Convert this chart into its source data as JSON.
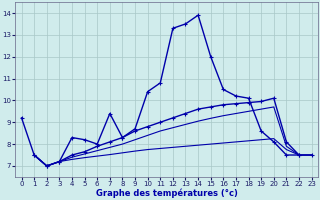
{
  "title": "Graphe des températures (°c)",
  "bg_color": "#d0ecec",
  "grid_color": "#a8c8c8",
  "line_color": "#0000aa",
  "xlim": [
    -0.5,
    23.5
  ],
  "ylim": [
    6.5,
    14.5
  ],
  "xticks": [
    0,
    1,
    2,
    3,
    4,
    5,
    6,
    7,
    8,
    9,
    10,
    11,
    12,
    13,
    14,
    15,
    16,
    17,
    18,
    19,
    20,
    21,
    22,
    23
  ],
  "yticks": [
    7,
    8,
    9,
    10,
    11,
    12,
    13,
    14
  ],
  "series": [
    {
      "x": [
        0,
        1,
        2,
        3,
        4,
        5,
        6,
        7,
        8,
        9,
        10,
        11,
        12,
        13,
        14,
        15,
        16,
        17,
        18,
        19,
        20,
        21,
        22
      ],
      "y": [
        9.2,
        7.5,
        7.0,
        7.2,
        8.3,
        8.2,
        8.0,
        9.4,
        8.3,
        8.7,
        10.4,
        10.8,
        13.3,
        13.5,
        13.9,
        12.0,
        10.5,
        10.2,
        10.1,
        8.6,
        8.1,
        7.5,
        7.5
      ],
      "marker": true,
      "lw": 1.0
    },
    {
      "x": [
        1,
        2,
        3,
        4,
        5,
        6,
        7,
        8,
        9,
        10,
        11,
        12,
        13,
        14,
        15,
        16,
        17,
        18,
        19,
        20,
        21,
        22,
        23
      ],
      "y": [
        7.5,
        7.0,
        7.2,
        7.5,
        7.65,
        7.9,
        8.1,
        8.3,
        8.6,
        8.8,
        9.0,
        9.2,
        9.4,
        9.6,
        9.7,
        9.8,
        9.85,
        9.9,
        9.95,
        10.1,
        8.1,
        7.5,
        7.5
      ],
      "marker": true,
      "lw": 1.0
    },
    {
      "x": [
        1,
        2,
        3,
        4,
        5,
        6,
        7,
        8,
        9,
        10,
        11,
        12,
        13,
        14,
        15,
        16,
        17,
        18,
        19,
        20,
        21,
        22,
        23
      ],
      "y": [
        7.5,
        7.0,
        7.2,
        7.4,
        7.55,
        7.7,
        7.85,
        8.0,
        8.2,
        8.4,
        8.6,
        8.75,
        8.9,
        9.05,
        9.18,
        9.3,
        9.4,
        9.5,
        9.6,
        9.7,
        7.9,
        7.5,
        7.5
      ],
      "marker": false,
      "lw": 0.8
    },
    {
      "x": [
        1,
        2,
        3,
        4,
        5,
        6,
        7,
        8,
        9,
        10,
        11,
        12,
        13,
        14,
        15,
        16,
        17,
        18,
        19,
        20,
        21,
        22,
        23
      ],
      "y": [
        7.5,
        7.0,
        7.2,
        7.3,
        7.38,
        7.45,
        7.52,
        7.6,
        7.68,
        7.75,
        7.8,
        7.85,
        7.9,
        7.95,
        8.0,
        8.05,
        8.1,
        8.15,
        8.2,
        8.25,
        7.75,
        7.5,
        7.5
      ],
      "marker": false,
      "lw": 0.8
    }
  ]
}
